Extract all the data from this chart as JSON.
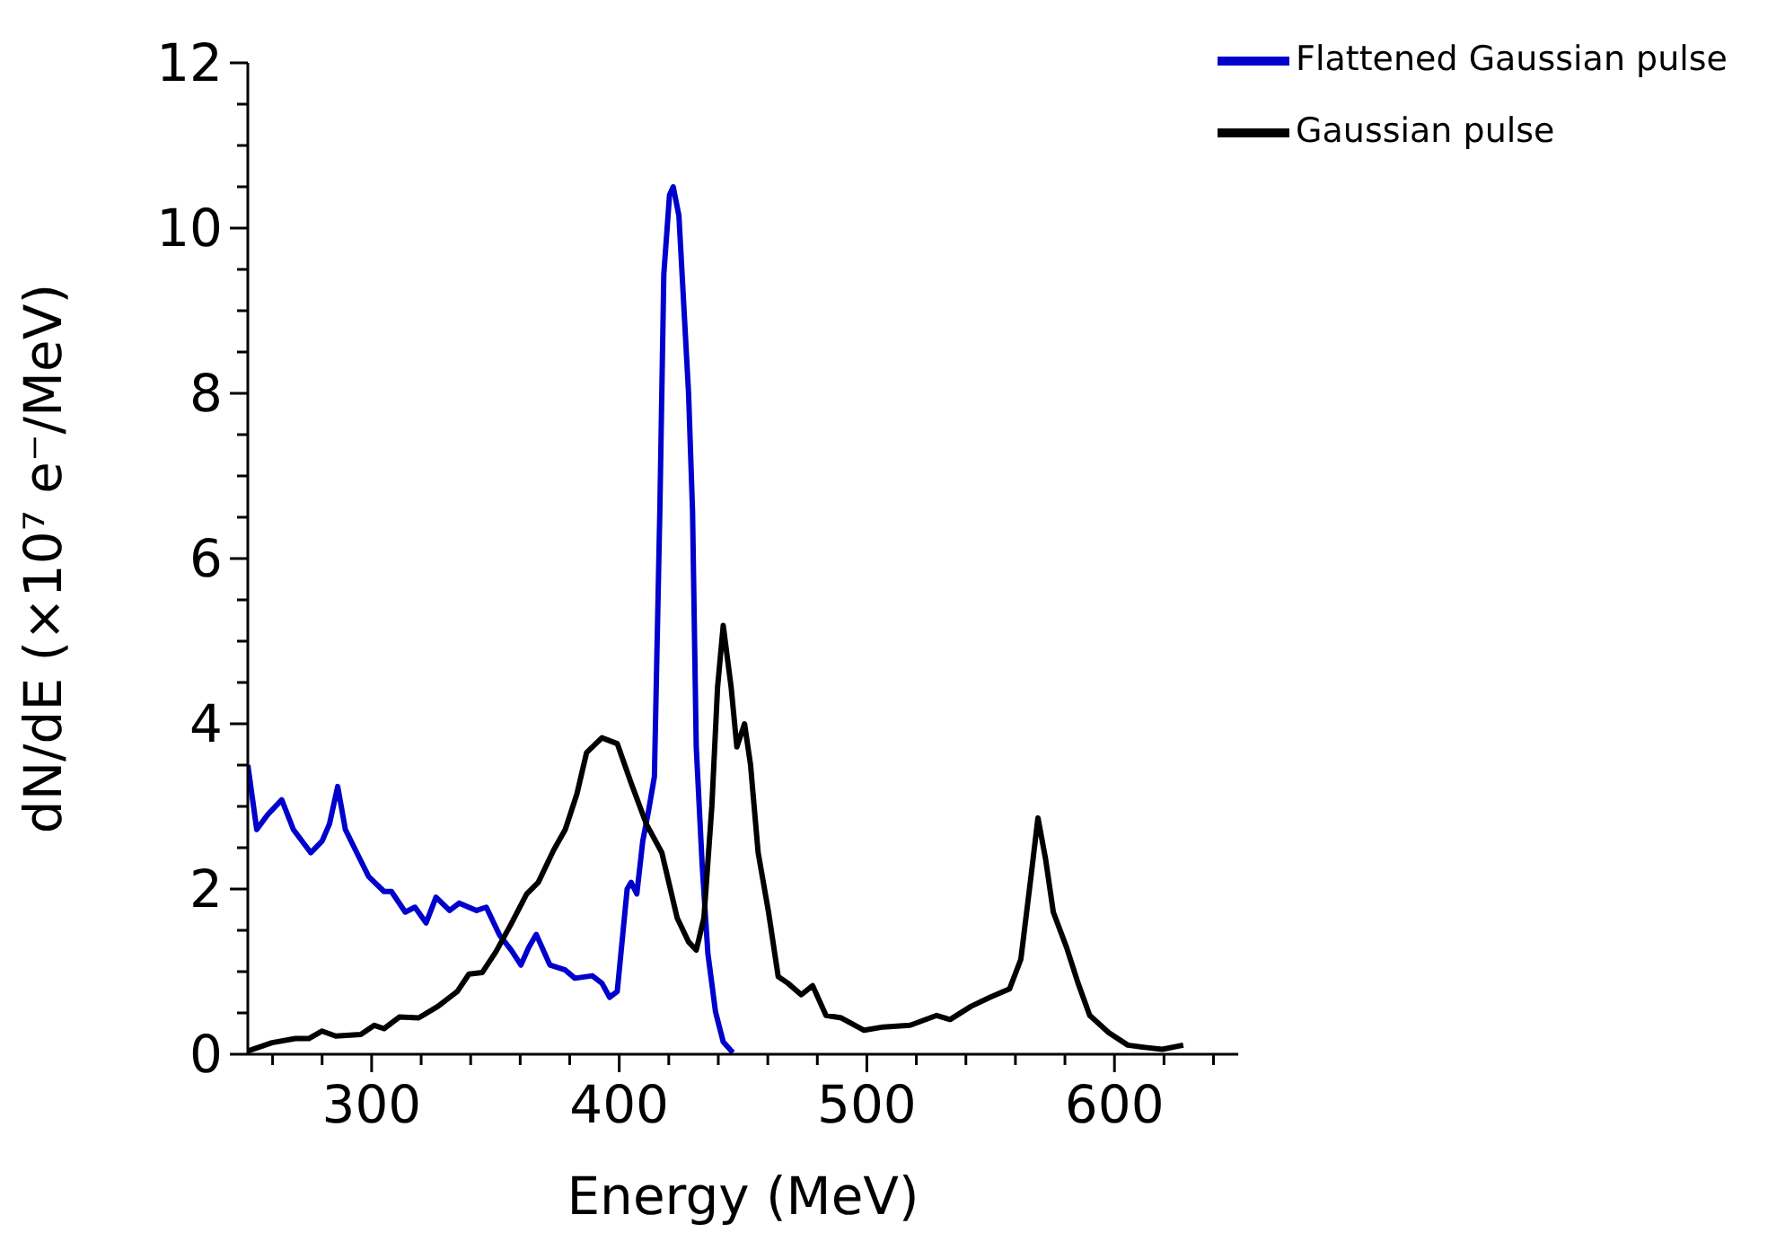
{
  "chart_data": {
    "type": "line",
    "xlabel": "Energy (MeV)",
    "ylabel": "dN/dE (×10⁷ e⁻/MeV)",
    "xlim": [
      250,
      650
    ],
    "ylim": [
      0,
      12
    ],
    "xticks": [
      {
        "value": 260,
        "label": null
      },
      {
        "value": 280,
        "label": null
      },
      300,
      {
        "value": 320,
        "label": null
      },
      {
        "value": 340,
        "label": null
      },
      {
        "value": 360,
        "label": null
      },
      {
        "value": 380,
        "label": null
      },
      400,
      {
        "value": 420,
        "label": null
      },
      {
        "value": 440,
        "label": null
      },
      {
        "value": 460,
        "label": null
      },
      {
        "value": 480,
        "label": null
      },
      500,
      {
        "value": 520,
        "label": null
      },
      {
        "value": 540,
        "label": null
      },
      {
        "value": 560,
        "label": null
      },
      {
        "value": 580,
        "label": null
      },
      600,
      {
        "value": 620,
        "label": null
      },
      {
        "value": 640,
        "label": null
      }
    ],
    "yticks": [
      0,
      {
        "value": 0.5,
        "label": null
      },
      {
        "value": 1,
        "label": null
      },
      {
        "value": 1.5,
        "label": null
      },
      2,
      {
        "value": 2.5,
        "label": null
      },
      {
        "value": 3,
        "label": null
      },
      {
        "value": 3.5,
        "label": null
      },
      4,
      {
        "value": 4.5,
        "label": null
      },
      {
        "value": 5,
        "label": null
      },
      {
        "value": 5.5,
        "label": null
      },
      6,
      {
        "value": 6.5,
        "label": null
      },
      {
        "value": 7,
        "label": null
      },
      {
        "value": 7.5,
        "label": null
      },
      8,
      {
        "value": 8.5,
        "label": null
      },
      {
        "value": 9,
        "label": null
      },
      {
        "value": 9.5,
        "label": null
      },
      10,
      {
        "value": 10.5,
        "label": null
      },
      {
        "value": 11,
        "label": null
      },
      {
        "value": 11.5,
        "label": null
      },
      12
    ],
    "legend": "top right",
    "line_style": "solid",
    "series": [
      {
        "name": "Flattened Gaussian pulse",
        "color": "#0000cc",
        "x": [
          250,
          253.6,
          258,
          263.7,
          268.4,
          275.4,
          280,
          283,
          286.3,
          289.4,
          294,
          298.8,
          305,
          308,
          313.6,
          317.5,
          322,
          326,
          331.5,
          335.4,
          342.4,
          346.3,
          351.7,
          356.4,
          360.3,
          363.4,
          366.5,
          372,
          378.2,
          382.1,
          389.1,
          393,
          396.1,
          399.2,
          403.2,
          404.8,
          407.1,
          409.5,
          411.8,
          414.2,
          416.4,
          418,
          420.3,
          421.8,
          424.1,
          428,
          429.6,
          431.1,
          433.5,
          435.8,
          438.9,
          442,
          445.9
        ],
        "values": [
          3.5,
          2.72,
          2.9,
          3.08,
          2.72,
          2.44,
          2.58,
          2.79,
          3.24,
          2.72,
          2.44,
          2.15,
          1.97,
          1.97,
          1.72,
          1.78,
          1.59,
          1.9,
          1.74,
          1.83,
          1.74,
          1.78,
          1.44,
          1.26,
          1.08,
          1.29,
          1.45,
          1.08,
          1.02,
          0.92,
          0.95,
          0.86,
          0.69,
          0.76,
          2.0,
          2.08,
          1.94,
          2.58,
          2.94,
          3.36,
          6.58,
          9.44,
          10.4,
          10.5,
          10.15,
          8.0,
          6.58,
          3.72,
          2.29,
          1.22,
          0.51,
          0.15,
          0.02
        ]
      },
      {
        "name": "Gaussian pulse",
        "color": "#000000",
        "x": [
          250,
          259.8,
          269.2,
          274.6,
          280,
          285.5,
          295.6,
          301.1,
          305,
          311.2,
          319,
          326.8,
          334.6,
          339.3,
          344.7,
          350.2,
          356.4,
          362.6,
          367.3,
          373.5,
          378.2,
          382.9,
          386.8,
          393,
          399.2,
          404.7,
          410.9,
          417.2,
          423.4,
          428,
          431.1,
          434.2,
          437.4,
          439.7,
          442,
          445.2,
          447.5,
          450.6,
          453,
          456.1,
          460.3,
          464.2,
          468.1,
          473.5,
          478.1,
          483.5,
          489.7,
          498.9,
          506.6,
          517.4,
          528.2,
          533.6,
          542.1,
          549.8,
          557.6,
          562.2,
          566,
          569.1,
          572.2,
          575.3,
          580.7,
          585.3,
          590,
          597.7,
          605.4,
          613.1,
          619.3,
          627.8
        ],
        "values": [
          0.04,
          0.14,
          0.19,
          0.19,
          0.28,
          0.22,
          0.24,
          0.35,
          0.31,
          0.45,
          0.44,
          0.58,
          0.76,
          0.97,
          0.99,
          1.24,
          1.58,
          1.94,
          2.08,
          2.47,
          2.72,
          3.15,
          3.65,
          3.83,
          3.76,
          3.29,
          2.79,
          2.44,
          1.65,
          1.36,
          1.26,
          1.65,
          3.0,
          4.44,
          5.19,
          4.44,
          3.72,
          4.0,
          3.51,
          2.44,
          1.72,
          0.94,
          0.86,
          0.72,
          0.83,
          0.47,
          0.44,
          0.29,
          0.33,
          0.35,
          0.47,
          0.42,
          0.58,
          0.69,
          0.79,
          1.15,
          2.08,
          2.86,
          2.36,
          1.72,
          1.29,
          0.86,
          0.47,
          0.26,
          0.11,
          0.08,
          0.06,
          0.11
        ]
      }
    ]
  }
}
